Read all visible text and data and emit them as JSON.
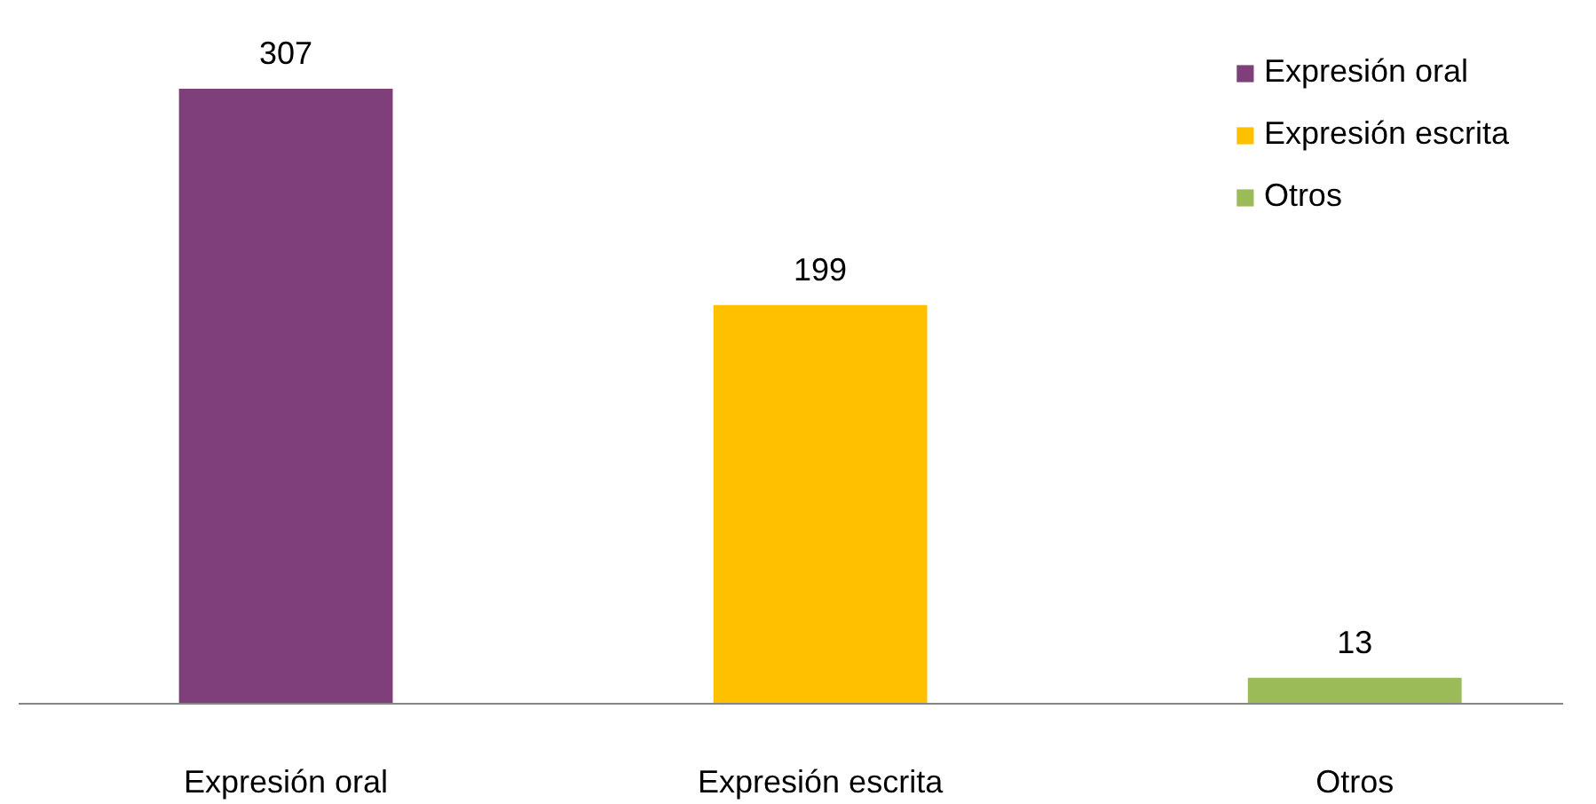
{
  "chart_data": {
    "type": "bar",
    "categories": [
      "Expresión oral",
      "Expresión escrita",
      "Otros"
    ],
    "series": [
      {
        "name": "Expresión oral",
        "color": "#7f3f7a",
        "values": [
          307,
          null,
          null
        ]
      },
      {
        "name": "Expresión escrita",
        "color": "#ffc000",
        "values": [
          null,
          199,
          null
        ]
      },
      {
        "name": "Otros",
        "color": "#9bbb59",
        "values": [
          null,
          null,
          13
        ]
      }
    ],
    "data_labels": true,
    "grid": false,
    "legend": "top right"
  }
}
